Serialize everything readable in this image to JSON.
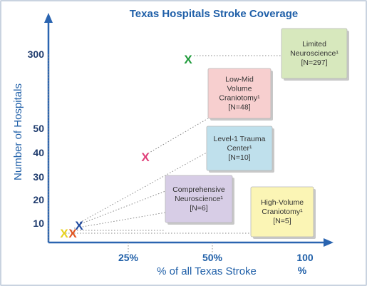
{
  "chart_data": {
    "type": "scatter",
    "title": "Texas Hospitals Stroke Coverage",
    "xlabel": "% of all Texas Stroke",
    "ylabel": "Number of Hospitals",
    "x_ticks": [
      "25%",
      "50%",
      "100",
      "%"
    ],
    "y_ticks": [
      "10",
      "20",
      "30",
      "40",
      "50",
      "300"
    ],
    "grid": false,
    "points": [
      {
        "name": "Limited Neuroscience",
        "sup": "1",
        "n_label": "[N=297]",
        "color": "#1e9a3a",
        "marker": "X",
        "lines": [
          "Limited",
          "Neuroscience¹",
          "[N=297]"
        ],
        "box_color": "#d7e8bd"
      },
      {
        "name": "Low-Mid Volume Craniotomy",
        "sup": "1",
        "n_label": "[N=48]",
        "color": "#e0407a",
        "marker": "X",
        "lines": [
          "Low-Mid",
          "Volume",
          "Craniotomy¹",
          "[N=48]"
        ],
        "box_color": "#f7cfcf"
      },
      {
        "name": "Level-1 Trauma Center",
        "sup": "1",
        "n_label": "[N=10]",
        "color": "#1f4aa0",
        "marker": "X",
        "lines": [
          "Level-1 Trauma",
          "Center¹",
          "[N=10]"
        ],
        "box_color": "#bfe0ec"
      },
      {
        "name": "Comprehensive Neuroscience",
        "sup": "1",
        "n_label": "[N=6]",
        "color": "#e2541f",
        "marker": "X",
        "lines": [
          "Comprehensive",
          "Neuroscience¹",
          "[N=6]"
        ],
        "box_color": "#d7cde6"
      },
      {
        "name": "High-Volume Craniotomy",
        "sup": "1",
        "n_label": "[N=5]",
        "color": "#e8d21f",
        "marker": "X",
        "lines": [
          "High-Volume",
          "Craniotomy¹",
          "[N=5]"
        ],
        "box_color": "#fbf5b5"
      }
    ]
  }
}
